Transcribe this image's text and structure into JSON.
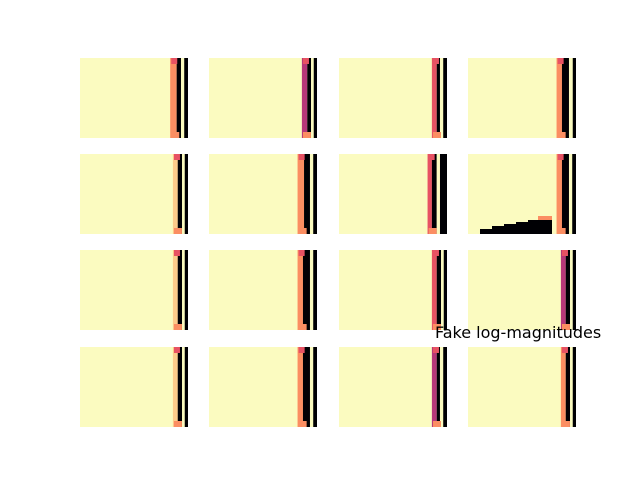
{
  "chart_data": {
    "type": "heatmap",
    "title": "",
    "annotation": "Fake log-magnitudes",
    "layout": "4x4 grid of spectrogram-like heatmaps",
    "colormap": "magma",
    "axes_visible": false,
    "background_color": "#fbfbc0",
    "panels": [
      {
        "row": 0,
        "col": 0,
        "band_cols": [
          0.835,
          0.895,
          0.935,
          0.965
        ],
        "band_colors": [
          "#fb8e62",
          "#000004",
          "#fbfbc0",
          "#000004"
        ]
      },
      {
        "row": 0,
        "col": 1,
        "band_cols": [
          0.86,
          0.91,
          0.945,
          0.97
        ],
        "band_colors": [
          "#b73779",
          "#000004",
          "#fbfbc0",
          "#000004"
        ]
      },
      {
        "row": 0,
        "col": 2,
        "band_cols": [
          0.86,
          0.905,
          0.935,
          0.965
        ],
        "band_colors": [
          "#e75263",
          "#000004",
          "#fbfbc0",
          "#000004"
        ]
      },
      {
        "row": 0,
        "col": 3,
        "band_cols": [
          0.82,
          0.87,
          0.935,
          0.97
        ],
        "band_colors": [
          "#fb8e62",
          "#000004",
          "#fbfbc0",
          "#000004"
        ]
      },
      {
        "row": 1,
        "col": 0,
        "band_cols": [
          0.86,
          0.905,
          0.945,
          0.97
        ],
        "band_colors": [
          "#fdcb8a",
          "#000004",
          "#fbfbc0",
          "#000004"
        ]
      },
      {
        "row": 1,
        "col": 1,
        "band_cols": [
          0.82,
          0.88,
          0.935,
          0.965
        ],
        "band_colors": [
          "#fb8e62",
          "#000004",
          "#fbfbc0",
          "#000004"
        ]
      },
      {
        "row": 1,
        "col": 2,
        "band_cols": [
          0.82,
          0.86,
          0.905,
          0.935
        ],
        "band_colors": [
          "#e75263",
          "#000004",
          "#fbfbc0",
          "#000004"
        ]
      },
      {
        "row": 1,
        "col": 3,
        "band_cols": [
          0.82,
          0.87,
          0.935,
          0.965
        ],
        "band_colors": [
          "#fb8e62",
          "#000004",
          "#fbfbc0",
          "#000004"
        ]
      },
      {
        "row": 2,
        "col": 0,
        "band_cols": [
          0.86,
          0.905,
          0.945,
          0.97
        ],
        "band_colors": [
          "#fdcb8a",
          "#000004",
          "#fbfbc0",
          "#000004"
        ]
      },
      {
        "row": 2,
        "col": 1,
        "band_cols": [
          0.82,
          0.87,
          0.935,
          0.965
        ],
        "band_colors": [
          "#fb8e62",
          "#000004",
          "#fbfbc0",
          "#000004"
        ]
      },
      {
        "row": 2,
        "col": 2,
        "band_cols": [
          0.86,
          0.905,
          0.945,
          0.97
        ],
        "band_colors": [
          "#e75263",
          "#000004",
          "#fbfbc0",
          "#000004"
        ]
      },
      {
        "row": 2,
        "col": 3,
        "band_cols": [
          0.86,
          0.905,
          0.945,
          0.97
        ],
        "band_colors": [
          "#b73779",
          "#000004",
          "#fbfbc0",
          "#000004"
        ]
      },
      {
        "row": 3,
        "col": 0,
        "band_cols": [
          0.86,
          0.905,
          0.945,
          0.97
        ],
        "band_colors": [
          "#fdcb8a",
          "#000004",
          "#fbfbc0",
          "#000004"
        ]
      },
      {
        "row": 3,
        "col": 1,
        "band_cols": [
          0.82,
          0.87,
          0.935,
          0.965
        ],
        "band_colors": [
          "#fb8e62",
          "#000004",
          "#fbfbc0",
          "#000004"
        ]
      },
      {
        "row": 3,
        "col": 2,
        "band_cols": [
          0.86,
          0.905,
          0.935,
          0.965
        ],
        "band_colors": [
          "#b73779",
          "#000004",
          "#fbfbc0",
          "#000004"
        ]
      },
      {
        "row": 3,
        "col": 3,
        "band_cols": [
          0.86,
          0.905,
          0.945,
          0.97
        ],
        "band_colors": [
          "#fb8e62",
          "#000004",
          "#fbfbc0",
          "#000004"
        ]
      }
    ]
  }
}
